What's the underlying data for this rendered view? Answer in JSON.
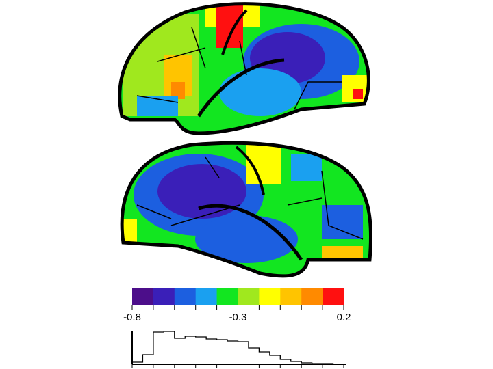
{
  "chart_data": {
    "type": "histogram",
    "colorbar": {
      "colors": [
        "#4c0e8a",
        "#3a1fb8",
        "#1c5fe0",
        "#1aa0f0",
        "#12e620",
        "#a0e81e",
        "#ffff00",
        "#ffc400",
        "#ff8a00",
        "#ff1010"
      ],
      "lim": [
        -0.8,
        0.2
      ],
      "ticks": [
        -0.8,
        -0.3,
        0.2
      ]
    },
    "bins": [
      -0.8,
      -0.75,
      -0.7,
      -0.65,
      -0.6,
      -0.55,
      -0.5,
      -0.45,
      -0.4,
      -0.35,
      -0.3,
      -0.25,
      -0.2,
      -0.15,
      -0.1,
      -0.05,
      0,
      0.05,
      0.1,
      0.15,
      0.2
    ],
    "counts": [
      3,
      14,
      47,
      48,
      38,
      41,
      40,
      37,
      36,
      34,
      33,
      24,
      18,
      13,
      7,
      4,
      2,
      1,
      1,
      0
    ],
    "ylim": [
      0,
      50
    ],
    "color": "#000000"
  }
}
